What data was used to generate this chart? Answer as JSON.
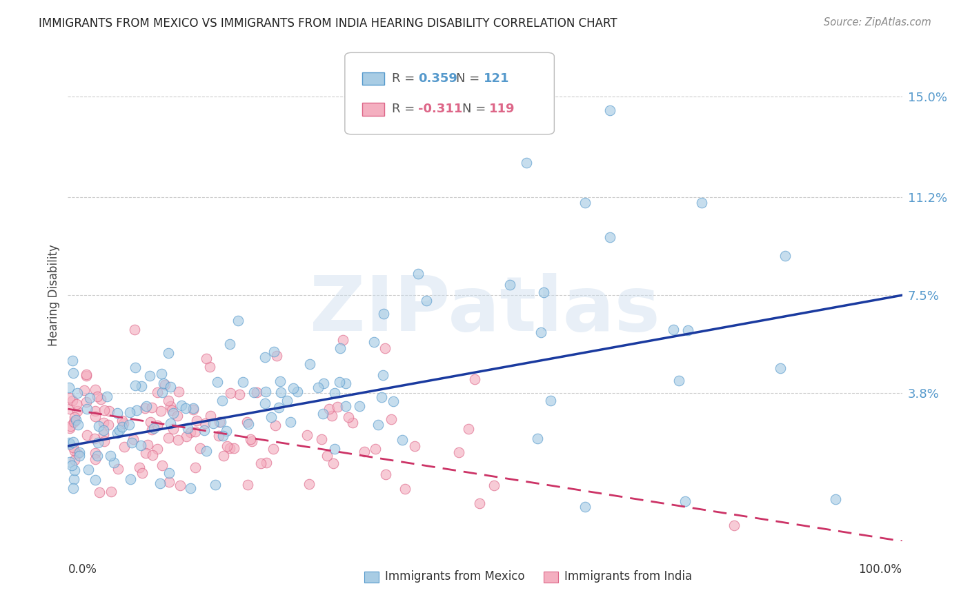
{
  "title": "IMMIGRANTS FROM MEXICO VS IMMIGRANTS FROM INDIA HEARING DISABILITY CORRELATION CHART",
  "source": "Source: ZipAtlas.com",
  "ylabel": "Hearing Disability",
  "y_ticks": [
    0.0,
    0.038,
    0.075,
    0.112,
    0.15
  ],
  "y_tick_labels": [
    "",
    "3.8%",
    "7.5%",
    "11.2%",
    "15.0%"
  ],
  "xlim": [
    0.0,
    1.0
  ],
  "ylim": [
    -0.018,
    0.168
  ],
  "mexico_color": "#a8cce4",
  "mexico_edge": "#5599cc",
  "india_color": "#f4afc0",
  "india_edge": "#dd6688",
  "mexico_R": 0.359,
  "mexico_N": 121,
  "india_R": -0.311,
  "india_N": 119,
  "regression_line_mexico_color": "#1a3a9f",
  "regression_line_india_color": "#cc3366",
  "watermark": "ZIPatlas",
  "legend_label_mexico": "Immigrants from Mexico",
  "legend_label_india": "Immigrants from India",
  "background_color": "#ffffff",
  "grid_color": "#cccccc",
  "title_color": "#222222",
  "right_axis_color": "#5599cc",
  "mex_line_y0": 0.018,
  "mex_line_y1": 0.075,
  "ind_line_y0": 0.032,
  "ind_line_y1": -0.018
}
